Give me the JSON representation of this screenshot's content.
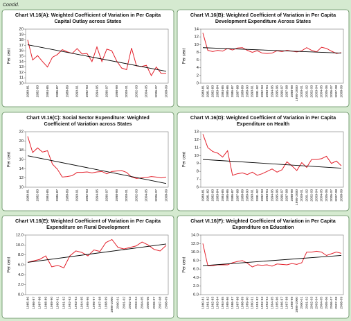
{
  "note": "Concld.",
  "chart_data": [
    {
      "type": "line",
      "title": [
        "Chart VI.16(A): Weighted Coefficient of Variation in Per Capita",
        "Capital Outlay across States"
      ],
      "ylabel": "Per cent",
      "categories": [
        "1980-81",
        null,
        "1982-83",
        null,
        "1984-85",
        null,
        "1986-87",
        null,
        "1988-89",
        null,
        "1990-91",
        null,
        "1992-93",
        null,
        "1994-95",
        null,
        "1996-97",
        null,
        "1998-99",
        null,
        "2000-01",
        null,
        "2002-03",
        null,
        "2004-05",
        null,
        "2006-07",
        null,
        "2008-09"
      ],
      "values": [
        18,
        14.3,
        15.1,
        14,
        13,
        14.8,
        15.3,
        16.2,
        15.8,
        15.5,
        16.4,
        15.4,
        15.5,
        14,
        16.7,
        14,
        16.3,
        16,
        14.1,
        12.8,
        12.5,
        16.5,
        13.2,
        13.1,
        13.3,
        11.4,
        13,
        11.8,
        11.8
      ],
      "trend": [
        17.1,
        12.2
      ],
      "color": "#e3202b",
      "trend_color": "#000000",
      "ylim": [
        10,
        20
      ],
      "yticks": [
        10,
        11,
        12,
        13,
        14,
        15,
        16,
        17,
        18,
        19,
        20
      ]
    },
    {
      "type": "line",
      "title": [
        "Chart VI.16(B): Weighted Coefficient of Variation in Per Capita",
        "Development Expenditure Across States"
      ],
      "ylabel": "Per cent",
      "categories": [
        "1980-81",
        "1981-82",
        "1982-83",
        "1983-84",
        "1984-85",
        "1985-86",
        "1986-87",
        "1987-88",
        "1988-89",
        "1989-90",
        "1990-91",
        "1991-92",
        "1992-93",
        "1993-94",
        "1994-95",
        "1995-96",
        "1996-97",
        "1997-98",
        "1998-99",
        "1999-2000",
        "2000-01",
        "2001-02",
        "2002-03",
        "2003-04",
        "2004-05",
        "2005-06",
        "2006-07",
        "2007-08",
        "2008-09"
      ],
      "values": [
        13,
        8.5,
        8.2,
        8.5,
        8.3,
        9,
        8.6,
        9.1,
        9.2,
        8.5,
        8,
        8.4,
        7.8,
        7.7,
        7.8,
        8.4,
        8.2,
        8.5,
        8.3,
        8.1,
        8.4,
        9.2,
        8.5,
        8.1,
        9.3,
        9,
        8.3,
        7.7,
        7.9
      ],
      "trend": [
        9.2,
        7.8
      ],
      "color": "#e3202b",
      "trend_color": "#000000",
      "ylim": [
        0,
        14
      ],
      "yticks": [
        0,
        2,
        4,
        6,
        8,
        10,
        12,
        14
      ]
    },
    {
      "type": "line",
      "title": [
        "Chart VI.16(C): Social Sector Expenditure: Weighted",
        "Coefficient of Variation across States"
      ],
      "ylabel": "Per cent",
      "categories": [
        "1980-81",
        null,
        "1982-83",
        null,
        "1984-85",
        null,
        "1986-87",
        null,
        "1988-89",
        null,
        "1990-91",
        null,
        "1992-93",
        null,
        "1994-95",
        null,
        "1996-97",
        null,
        "1998-99",
        null,
        "2000-01",
        null,
        "2002-03",
        null,
        "2004-05",
        null,
        "2006-07",
        null,
        "2008-09"
      ],
      "values": [
        21,
        17.5,
        18.5,
        17.6,
        17.9,
        15,
        13.9,
        12.2,
        12.3,
        12.5,
        13.2,
        13.2,
        13.3,
        13.1,
        13.3,
        13.4,
        12.9,
        13.4,
        13.5,
        13.6,
        13.2,
        12.2,
        11.9,
        12,
        12.1,
        12.3,
        12.2,
        12,
        12.2
      ],
      "trend": [
        16.8,
        10.8
      ],
      "color": "#e3202b",
      "trend_color": "#000000",
      "ylim": [
        10,
        22
      ],
      "yticks": [
        10,
        12,
        14,
        16,
        18,
        20,
        22
      ]
    },
    {
      "type": "line",
      "title": [
        "Chart VI.16(D): Weighted Coefficient of Variation in Per Capita",
        "Expenditure on  Health"
      ],
      "ylabel": "Per cent",
      "categories": [
        "1980-81",
        "1981-82",
        "1982-83",
        "1983-84",
        "1984-85",
        "1985-86",
        "1986-87",
        "1987-88",
        "1988-89",
        "1989-90",
        "1990-91",
        "1991-92",
        "1992-93",
        "1993-94",
        "1994-95",
        "1995-96",
        "1996-97",
        "1997-98",
        "1998-99",
        "1999-2000",
        "2000-01",
        "2001-02",
        "2002-03",
        "2003-04",
        "2004-05",
        "2005-06",
        "2006-07",
        "2007-08",
        "2008-09"
      ],
      "values": [
        12.7,
        11,
        10.5,
        10.3,
        9.8,
        10.6,
        7.5,
        7.7,
        7.8,
        7.6,
        7.9,
        7.5,
        7.7,
        8,
        8.3,
        7.9,
        8.2,
        9.2,
        8.7,
        8.1,
        9.1,
        8.5,
        9.5,
        9.5,
        9.6,
        9.9,
        9,
        9.3,
        8.7
      ],
      "trend": [
        9.5,
        8.4
      ],
      "color": "#e3202b",
      "trend_color": "#000000",
      "ylim": [
        6,
        13
      ],
      "yticks": [
        6,
        7,
        8,
        9,
        10,
        11,
        12,
        13
      ]
    },
    {
      "type": "line",
      "title": [
        "Chart VI.16(E): Weighted Coefficient of Variation in Per Capita",
        "Expenditure on  Rural Development"
      ],
      "ylabel": "Per cent",
      "categories": [
        "1985-86",
        "1986-87",
        "1987-88",
        "1988-89",
        "1989-90",
        "1990-91",
        "1991-92",
        "1992-93",
        "1993-94",
        "1994-95",
        "1995-96",
        "1996-97",
        "1997-98",
        "1998-99",
        "1999-2000",
        "2000-01",
        "2001-02",
        "2002-03",
        "2003-04",
        "2004-05",
        "2005-06",
        "2006-07",
        "2007-08",
        "2008-09"
      ],
      "values": [
        6.5,
        6.8,
        7.1,
        7.8,
        5.6,
        5.9,
        5.4,
        7.8,
        8.8,
        8.5,
        7.8,
        9,
        8.7,
        10.5,
        11.1,
        9.5,
        9.2,
        9.5,
        9.8,
        10.6,
        10,
        9.1,
        8.8,
        9.9
      ],
      "trend": [
        6.5,
        10.2
      ],
      "color": "#e3202b",
      "trend_color": "#000000",
      "ylim": [
        0,
        12
      ],
      "yticks": [
        {
          "value": 0,
          "label": "0.0"
        },
        {
          "value": 2,
          "label": "2.0"
        },
        {
          "value": 4,
          "label": "4.0"
        },
        {
          "value": 6,
          "label": "6.0"
        },
        {
          "value": 8,
          "label": "8.0"
        },
        {
          "value": 10,
          "label": "10.0"
        },
        {
          "value": 12,
          "label": "12.0"
        }
      ]
    },
    {
      "type": "line",
      "title": [
        "Chart VI.16(F): Weighted Coefficient of Variation in Per Capita",
        "Expenditure on  Education"
      ],
      "ylabel": "Per cent",
      "categories": [
        "1980-81",
        "1981-82",
        "1982-83",
        "1983-84",
        "1984-85",
        "1985-86",
        "1986-87",
        "1987-88",
        "1988-89",
        "1989-90",
        "1990-91",
        "1991-92",
        "1992-93",
        "1993-94",
        "1994-95",
        "1995-96",
        "1996-97",
        "1997-98",
        "1998-99",
        "1999-2000",
        "2000-01",
        "2001-02",
        "2002-03",
        "2003-04",
        "2004-05",
        "2005-06",
        "2006-07",
        "2007-08",
        "2008-09"
      ],
      "values": [
        12,
        6.8,
        6.8,
        7,
        7,
        7,
        7.5,
        7.8,
        8,
        7.4,
        6.5,
        7,
        6.9,
        7,
        6.7,
        7.2,
        7.1,
        7,
        7.3,
        7.1,
        7.5,
        10,
        10,
        10.2,
        10,
        9.2,
        9.6,
        10,
        9.7
      ],
      "trend": [
        6.8,
        9.2
      ],
      "color": "#e3202b",
      "trend_color": "#000000",
      "ylim": [
        0,
        14
      ],
      "yticks": [
        {
          "value": 0,
          "label": "0.0"
        },
        {
          "value": 2,
          "label": "2.0"
        },
        {
          "value": 4,
          "label": "4.0"
        },
        {
          "value": 6,
          "label": "6.0"
        },
        {
          "value": 8,
          "label": "8.0"
        },
        {
          "value": 10,
          "label": "10.0"
        },
        {
          "value": 12,
          "label": "12.0"
        },
        {
          "value": 14,
          "label": "14.0"
        }
      ]
    }
  ]
}
